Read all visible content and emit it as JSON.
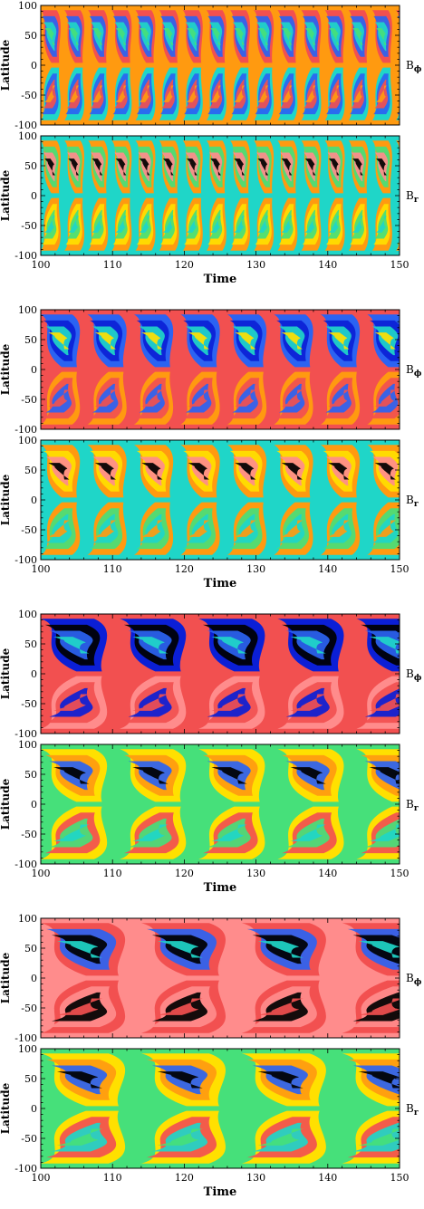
{
  "figure": {
    "colors": {
      "black": "#000000",
      "navy": "#0b1fd6",
      "blue": "#2b63f2",
      "cyan": "#1fd6c8",
      "green": "#46e07a",
      "yellow": "#ffe000",
      "orange": "#ff9a10",
      "red": "#f25050",
      "pink": "#ff8c8c",
      "frame": "#000000"
    }
  },
  "chart_data": [
    {
      "type": "heatmap",
      "panel_group": 1,
      "field_label": "B",
      "field_sub": "ϕ",
      "ylabel": "Latitude",
      "xlabel": "",
      "xlim": [
        100,
        150
      ],
      "ylim": [
        -100,
        100
      ],
      "xticks": [
        "100",
        "110",
        "120",
        "130",
        "140",
        "150"
      ],
      "yticks": [
        "100",
        "50",
        "0",
        "-50",
        "-100"
      ],
      "cycle_period": 3.3,
      "palette": [
        "orange",
        "red",
        "blue",
        "cyan",
        "green",
        "orange",
        "cyan",
        "blue",
        "red",
        "orange"
      ]
    },
    {
      "type": "heatmap",
      "panel_group": 1,
      "field_label": "B",
      "field_sub": "r",
      "ylabel": "Latitude",
      "xlabel": "Time",
      "xlim": [
        100,
        150
      ],
      "ylim": [
        -100,
        100
      ],
      "xticks": [
        "100",
        "110",
        "120",
        "130",
        "140",
        "150"
      ],
      "yticks": [
        "100",
        "50",
        "0",
        "-50",
        "-100"
      ],
      "cycle_period": 3.3,
      "palette": [
        "cyan",
        "orange",
        "green",
        "pink",
        "black",
        "cyan",
        "orange",
        "yellow",
        "green",
        "cyan"
      ]
    },
    {
      "type": "heatmap",
      "panel_group": 2,
      "field_label": "B",
      "field_sub": "ϕ",
      "ylabel": "Latitude",
      "xlabel": "",
      "xlim": [
        100,
        150
      ],
      "ylim": [
        -100,
        100
      ],
      "xticks": [
        "100",
        "110",
        "120",
        "130",
        "140",
        "150"
      ],
      "yticks": [
        "100",
        "50",
        "0",
        "-50",
        "-100"
      ],
      "cycle_period": 6.5,
      "palette": [
        "red",
        "blue",
        "navy",
        "cyan",
        "yellow",
        "red",
        "orange",
        "red",
        "blue",
        "red"
      ]
    },
    {
      "type": "heatmap",
      "panel_group": 2,
      "field_label": "B",
      "field_sub": "r",
      "ylabel": "Latitude",
      "xlabel": "Time",
      "xlim": [
        100,
        150
      ],
      "ylim": [
        -100,
        100
      ],
      "xticks": [
        "100",
        "110",
        "120",
        "130",
        "140",
        "150"
      ],
      "yticks": [
        "100",
        "50",
        "0",
        "-50",
        "-100"
      ],
      "cycle_period": 6.5,
      "palette": [
        "cyan",
        "orange",
        "yellow",
        "pink",
        "black",
        "cyan",
        "orange",
        "green",
        "cyan",
        "orange"
      ]
    },
    {
      "type": "heatmap",
      "panel_group": 3,
      "field_label": "B",
      "field_sub": "ϕ",
      "ylabel": "Latitude",
      "xlabel": "",
      "xlim": [
        100,
        150
      ],
      "ylim": [
        -100,
        100
      ],
      "xticks": [
        "100",
        "110",
        "120",
        "130",
        "140",
        "150"
      ],
      "yticks": [
        "100",
        "50",
        "0",
        "-50",
        "-100"
      ],
      "cycle_period": 11,
      "palette": [
        "red",
        "navy",
        "black",
        "blue",
        "cyan",
        "red",
        "pink",
        "red",
        "navy",
        "red"
      ]
    },
    {
      "type": "heatmap",
      "panel_group": 3,
      "field_label": "B",
      "field_sub": "r",
      "ylabel": "Latitude",
      "xlabel": "Time",
      "xlim": [
        100,
        150
      ],
      "ylim": [
        -100,
        100
      ],
      "xticks": [
        "100",
        "110",
        "120",
        "130",
        "140",
        "150"
      ],
      "yticks": [
        "100",
        "50",
        "0",
        "-50",
        "-100"
      ],
      "cycle_period": 11,
      "palette": [
        "green",
        "yellow",
        "orange",
        "blue",
        "black",
        "green",
        "yellow",
        "red",
        "green",
        "cyan"
      ]
    },
    {
      "type": "heatmap",
      "panel_group": 4,
      "field_label": "B",
      "field_sub": "ϕ",
      "ylabel": "Latitude",
      "xlabel": "",
      "xlim": [
        100,
        150
      ],
      "ylim": [
        -100,
        100
      ],
      "xticks": [
        "100",
        "110",
        "120",
        "130",
        "140",
        "150"
      ],
      "yticks": [
        "100",
        "50",
        "0",
        "-50",
        "-100"
      ],
      "cycle_period": 14,
      "palette": [
        "pink",
        "red",
        "blue",
        "black",
        "cyan",
        "pink",
        "red",
        "pink",
        "black",
        "red"
      ]
    },
    {
      "type": "heatmap",
      "panel_group": 4,
      "field_label": "B",
      "field_sub": "r",
      "ylabel": "Latitude",
      "xlabel": "Time",
      "xlim": [
        100,
        150
      ],
      "ylim": [
        -100,
        100
      ],
      "xticks": [
        "100",
        "110",
        "120",
        "130",
        "140",
        "150"
      ],
      "yticks": [
        "100",
        "50",
        "0",
        "-50",
        "-100"
      ],
      "cycle_period": 14,
      "palette": [
        "green",
        "yellow",
        "orange",
        "blue",
        "black",
        "green",
        "yellow",
        "red",
        "cyan",
        "green"
      ]
    }
  ]
}
